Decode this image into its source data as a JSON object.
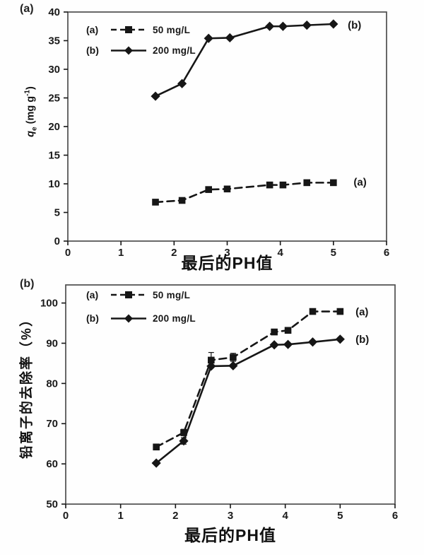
{
  "figure": {
    "background": "#fefefe",
    "ink_color": "#161616",
    "frame_color": "#4d4d4d"
  },
  "chart_data": [
    {
      "id": "a",
      "type": "line",
      "panel_label": "(a)",
      "xlabel": "最后的PH值",
      "ylabel": "qe (mg g-1)",
      "ylabel_parts": {
        "var": "q",
        "sub": "e",
        "unit_pre": " (mg g",
        "exp": "-1",
        "unit_post": ")"
      },
      "x_range": [
        0,
        6
      ],
      "y_range": [
        0,
        40
      ],
      "x_ticks": [
        0,
        1,
        2,
        3,
        4,
        5,
        6
      ],
      "y_ticks": [
        0,
        5,
        10,
        15,
        20,
        25,
        30,
        35,
        40
      ],
      "grid": false,
      "legend_position": "top-left-inside",
      "series": [
        {
          "key": "(a)",
          "label": "50 mg/L",
          "marker": "square",
          "line": "dashed",
          "x": [
            1.65,
            2.15,
            2.65,
            3.0,
            3.8,
            4.05,
            4.5,
            5.0
          ],
          "y": [
            6.8,
            7.1,
            9.0,
            9.1,
            9.8,
            9.8,
            10.2,
            10.2
          ],
          "end_label": {
            "text": "(a)",
            "x": 5.38,
            "y": 10.3
          }
        },
        {
          "key": "(b)",
          "label": "200 mg/L",
          "marker": "diamond",
          "line": "solid",
          "x": [
            1.65,
            2.15,
            2.65,
            3.05,
            3.8,
            4.05,
            4.5,
            5.0
          ],
          "y": [
            25.3,
            27.5,
            35.4,
            35.5,
            37.5,
            37.5,
            37.7,
            37.9
          ],
          "end_label": {
            "text": "(b)",
            "x": 5.27,
            "y": 37.7
          }
        }
      ]
    },
    {
      "id": "b",
      "type": "line",
      "panel_label": "(b)",
      "xlabel": "最后的PH值",
      "ylabel": "铅离子的去除率（%）",
      "x_range": [
        0,
        6
      ],
      "y_range": [
        50,
        104.5
      ],
      "x_ticks": [
        0,
        1,
        2,
        3,
        4,
        5,
        6
      ],
      "y_ticks": [
        50,
        60,
        70,
        80,
        90,
        100
      ],
      "grid": false,
      "legend_position": "top-left-inside",
      "series": [
        {
          "key": "(a)",
          "label": "50 mg/L",
          "marker": "square",
          "line": "dashed",
          "x": [
            1.65,
            2.15,
            2.65,
            3.05,
            3.8,
            4.05,
            4.5,
            5.0
          ],
          "y": [
            64.2,
            67.8,
            85.8,
            86.5,
            92.8,
            93.2,
            97.9,
            97.9
          ],
          "yerr": [
            null,
            0.8,
            1.9,
            1.0,
            null,
            null,
            null,
            null
          ],
          "end_label": {
            "text": "(a)",
            "x": 5.28,
            "y": 97.8
          }
        },
        {
          "key": "(b)",
          "label": "200 mg/L",
          "marker": "diamond",
          "line": "solid",
          "x": [
            1.65,
            2.15,
            2.65,
            3.05,
            3.8,
            4.05,
            4.5,
            5.0
          ],
          "y": [
            60.2,
            65.7,
            84.3,
            84.4,
            89.6,
            89.7,
            90.3,
            91.0
          ],
          "yerr": [
            null,
            0.8,
            null,
            null,
            null,
            null,
            null,
            null
          ],
          "end_label": {
            "text": "(b)",
            "x": 5.28,
            "y": 91.0
          }
        }
      ]
    }
  ]
}
